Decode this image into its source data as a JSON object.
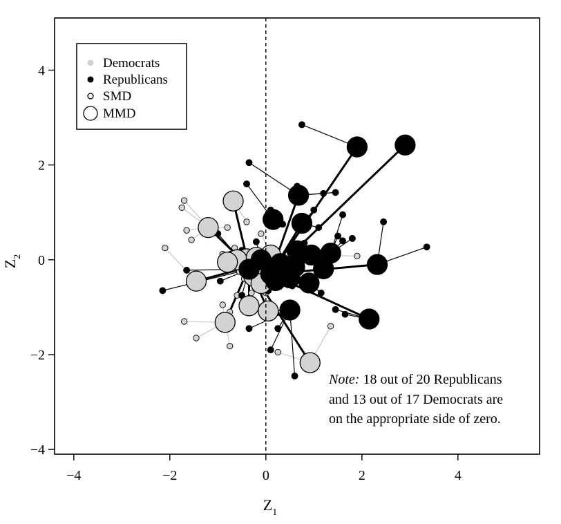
{
  "chart_data": {
    "type": "scatter",
    "title": "",
    "xlabel": "Z",
    "xlabel_sub": "1",
    "ylabel": "Z",
    "ylabel_sub": "2",
    "xlim": [
      -4.4,
      5.7
    ],
    "ylim": [
      -4.1,
      5.1
    ],
    "xticks": [
      -4,
      -2,
      0,
      2,
      4
    ],
    "yticks": [
      -4,
      -2,
      0,
      2,
      4
    ],
    "x_tick_labels": [
      "−4",
      "−2",
      "0",
      "2",
      "4"
    ],
    "y_tick_labels": [
      "−4",
      "−2",
      "0",
      "2",
      "4"
    ],
    "reference_line": {
      "axis": "x",
      "value": 0,
      "style": "dashed"
    },
    "grid": false,
    "legend_position": "top-left",
    "legend": [
      {
        "label": "Democrats",
        "marker": "dot-grey"
      },
      {
        "label": "Republicans",
        "marker": "dot-black"
      },
      {
        "label": "SMD",
        "marker": "small-open-circle"
      },
      {
        "label": "MMD",
        "marker": "large-open-circle"
      }
    ],
    "note": {
      "label": "Note:",
      "line1": " 18 out of 20 Republicans",
      "line2": "and 13 out of 17 Democrats are",
      "line3": "on the appropriate side of zero."
    },
    "colors": {
      "democrats": "#d3d3d3",
      "republicans": "#000000",
      "connector_dem": "#c8c8c8"
    },
    "series": [
      {
        "name": "Republicans",
        "marker": "MMD",
        "points": [
          {
            "x": 1.9,
            "y": 2.38
          },
          {
            "x": 2.9,
            "y": 2.42
          },
          {
            "x": 0.68,
            "y": 1.36
          },
          {
            "x": 0.75,
            "y": 0.77
          },
          {
            "x": 0.15,
            "y": 0.85
          },
          {
            "x": 1.35,
            "y": 0.14
          },
          {
            "x": 0.95,
            "y": 0.1
          },
          {
            "x": 0.65,
            "y": 0.19
          },
          {
            "x": 1.2,
            "y": -0.19
          },
          {
            "x": 0.3,
            "y": -0.08
          },
          {
            "x": 0.1,
            "y": -0.3
          },
          {
            "x": 0.5,
            "y": -0.38
          },
          {
            "x": 0.2,
            "y": -0.44
          },
          {
            "x": 0.9,
            "y": -0.49
          },
          {
            "x": 2.32,
            "y": -0.1
          },
          {
            "x": 2.15,
            "y": -1.25
          },
          {
            "x": 0.5,
            "y": -1.06
          },
          {
            "x": -0.35,
            "y": -0.2
          },
          {
            "x": -0.1,
            "y": 0.0
          },
          {
            "x": 0.6,
            "y": -0.15
          }
        ]
      },
      {
        "name": "Democrats",
        "marker": "MMD",
        "points": [
          {
            "x": -0.68,
            "y": 1.24
          },
          {
            "x": -1.2,
            "y": 0.68
          },
          {
            "x": -1.45,
            "y": -0.45
          },
          {
            "x": -0.85,
            "y": -1.32
          },
          {
            "x": -0.35,
            "y": -0.97
          },
          {
            "x": 0.05,
            "y": -1.08
          },
          {
            "x": 0.92,
            "y": -2.17
          },
          {
            "x": -0.7,
            "y": -0.03
          },
          {
            "x": -0.4,
            "y": 0.02
          },
          {
            "x": -0.35,
            "y": -0.15
          },
          {
            "x": -0.6,
            "y": 0.0
          },
          {
            "x": 0.05,
            "y": -0.1
          },
          {
            "x": -0.25,
            "y": -0.35
          },
          {
            "x": -0.8,
            "y": -0.05
          },
          {
            "x": 0.1,
            "y": 0.1
          },
          {
            "x": -0.2,
            "y": 0.05
          },
          {
            "x": -0.1,
            "y": -0.5
          }
        ]
      },
      {
        "name": "Republicans",
        "marker": "SMD",
        "points": [
          {
            "x": 0.75,
            "y": 2.85
          },
          {
            "x": -0.35,
            "y": 2.05
          },
          {
            "x": -0.4,
            "y": 1.6
          },
          {
            "x": 0.65,
            "y": 1.55
          },
          {
            "x": 1.2,
            "y": 1.4
          },
          {
            "x": 1.45,
            "y": 1.42
          },
          {
            "x": 1.0,
            "y": 1.05
          },
          {
            "x": 1.6,
            "y": 0.95
          },
          {
            "x": 0.1,
            "y": 1.05
          },
          {
            "x": 2.45,
            "y": 0.8
          },
          {
            "x": 0.35,
            "y": 0.75
          },
          {
            "x": 1.1,
            "y": 0.68
          },
          {
            "x": 1.5,
            "y": 0.5
          },
          {
            "x": 1.6,
            "y": 0.4
          },
          {
            "x": 0.8,
            "y": 0.35
          },
          {
            "x": 1.8,
            "y": 0.45
          },
          {
            "x": 3.35,
            "y": 0.27
          },
          {
            "x": 0.55,
            "y": 0.35
          },
          {
            "x": -0.2,
            "y": 0.38
          },
          {
            "x": -1.0,
            "y": 0.55
          },
          {
            "x": -0.5,
            "y": 0.2
          },
          {
            "x": -1.65,
            "y": -0.22
          },
          {
            "x": -2.15,
            "y": -0.65
          },
          {
            "x": -0.95,
            "y": -0.45
          },
          {
            "x": -0.5,
            "y": -0.75
          },
          {
            "x": 0.05,
            "y": -0.65
          },
          {
            "x": 0.55,
            "y": -0.55
          },
          {
            "x": 1.15,
            "y": -0.7
          },
          {
            "x": 1.45,
            "y": -1.05
          },
          {
            "x": 1.65,
            "y": -1.15
          },
          {
            "x": -0.35,
            "y": -1.45
          },
          {
            "x": 0.25,
            "y": -1.45
          },
          {
            "x": 0.1,
            "y": -1.9
          },
          {
            "x": 0.6,
            "y": -2.45
          },
          {
            "x": -0.35,
            "y": -1.1
          }
        ]
      },
      {
        "name": "Democrats",
        "marker": "SMD",
        "points": [
          {
            "x": -1.7,
            "y": 1.25
          },
          {
            "x": -1.75,
            "y": 1.1
          },
          {
            "x": -1.65,
            "y": 0.62
          },
          {
            "x": -1.55,
            "y": 0.42
          },
          {
            "x": -2.1,
            "y": 0.25
          },
          {
            "x": -0.8,
            "y": 0.68
          },
          {
            "x": -0.9,
            "y": 0.12
          },
          {
            "x": -0.8,
            "y": -0.15
          },
          {
            "x": -0.55,
            "y": -0.25
          },
          {
            "x": -0.65,
            "y": 0.25
          },
          {
            "x": -0.5,
            "y": 0.1
          },
          {
            "x": -0.3,
            "y": -0.1
          },
          {
            "x": -0.45,
            "y": -0.4
          },
          {
            "x": -0.2,
            "y": -0.55
          },
          {
            "x": -0.3,
            "y": -0.7
          },
          {
            "x": -0.6,
            "y": -0.75
          },
          {
            "x": -0.9,
            "y": -0.95
          },
          {
            "x": -0.75,
            "y": -1.1
          },
          {
            "x": -1.7,
            "y": -1.3
          },
          {
            "x": -1.45,
            "y": -1.65
          },
          {
            "x": -0.75,
            "y": -1.82
          },
          {
            "x": 0.25,
            "y": -1.95
          },
          {
            "x": 0.0,
            "y": -0.7
          },
          {
            "x": 1.9,
            "y": 0.08
          },
          {
            "x": 1.35,
            "y": -1.4
          },
          {
            "x": -0.1,
            "y": 0.55
          },
          {
            "x": -0.4,
            "y": 0.8
          }
        ]
      }
    ]
  }
}
